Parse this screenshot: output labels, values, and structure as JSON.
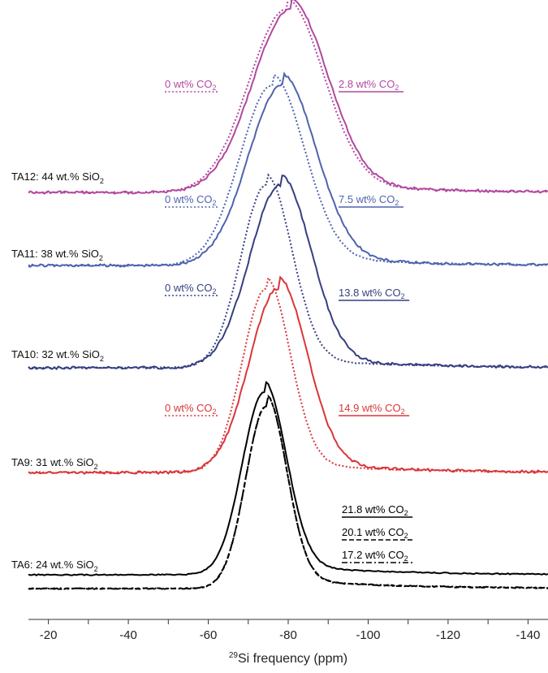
{
  "chart_data": {
    "type": "line",
    "xlabel_sup": "29",
    "xlabel_main": "Si frequency (ppm)",
    "x_axis_reversed": true,
    "xlim": [
      -15,
      -145
    ],
    "xticks": [
      {
        "v": -20,
        "label": "-20"
      },
      {
        "v": -40,
        "label": "-40"
      },
      {
        "v": -60,
        "label": "-60"
      },
      {
        "v": -80,
        "label": "-80"
      },
      {
        "v": -100,
        "label": "-100"
      },
      {
        "v": -120,
        "label": "-120"
      },
      {
        "v": -140,
        "label": "-140"
      }
    ],
    "grid": false,
    "stack": [
      {
        "name": "TA12: 44 wt.% SiO",
        "name_sub": "2",
        "color": "#b2489f",
        "series": [
          {
            "label": "0 wt% CO",
            "label_sub": "2",
            "style": "dotted",
            "peak": -79.5,
            "intensity": 1.0,
            "fwhm": 22
          },
          {
            "label": "2.8 wt% CO",
            "label_sub": "2",
            "style": "solid",
            "peak": -80.5,
            "intensity": 1.0,
            "fwhm": 22
          }
        ]
      },
      {
        "name": "TA11: 38 wt.% SiO",
        "name_sub": "2",
        "color": "#4f63ae",
        "series": [
          {
            "label": "0 wt% CO",
            "label_sub": "2",
            "style": "dotted",
            "peak": -76,
            "intensity": 1.0,
            "fwhm": 19
          },
          {
            "label": "7.5 wt% CO",
            "label_sub": "2",
            "style": "solid",
            "peak": -78.5,
            "intensity": 1.0,
            "fwhm": 20
          }
        ]
      },
      {
        "name": "TA10: 32 wt.% SiO",
        "name_sub": "2",
        "color": "#363f80",
        "series": [
          {
            "label": "0 wt% CO",
            "label_sub": "2",
            "style": "dotted",
            "peak": -74.5,
            "intensity": 1.0,
            "fwhm": 15
          },
          {
            "label": "13.8 wt% CO",
            "label_sub": "2",
            "style": "solid",
            "peak": -78,
            "intensity": 1.0,
            "fwhm": 18
          }
        ]
      },
      {
        "name": "TA9: 31 wt.% SiO",
        "name_sub": "2",
        "color": "#d9363a",
        "series": [
          {
            "label": "0 wt% CO",
            "label_sub": "2",
            "style": "dotted",
            "peak": -74.5,
            "intensity": 1.0,
            "fwhm": 14
          },
          {
            "label": "14.9 wt% CO",
            "label_sub": "2",
            "style": "solid",
            "peak": -77.5,
            "intensity": 1.0,
            "fwhm": 17
          }
        ]
      },
      {
        "name": "TA6: 24 wt.% SiO",
        "name_sub": "2",
        "color": "#000000",
        "series": [
          {
            "label": "21.8 wt% CO",
            "label_sub": "2",
            "style": "solid",
            "peak": -74,
            "intensity": 1.0,
            "fwhm": 13
          },
          {
            "label": "20.1 wt% CO",
            "label_sub": "2",
            "style": "dashed",
            "peak": -74.5,
            "intensity": 1.0,
            "fwhm": 12
          },
          {
            "label": "17.2 wt% CO",
            "label_sub": "2",
            "style": "dashdot",
            "peak": -74.5,
            "intensity": 1.0,
            "fwhm": 12
          }
        ]
      }
    ]
  }
}
